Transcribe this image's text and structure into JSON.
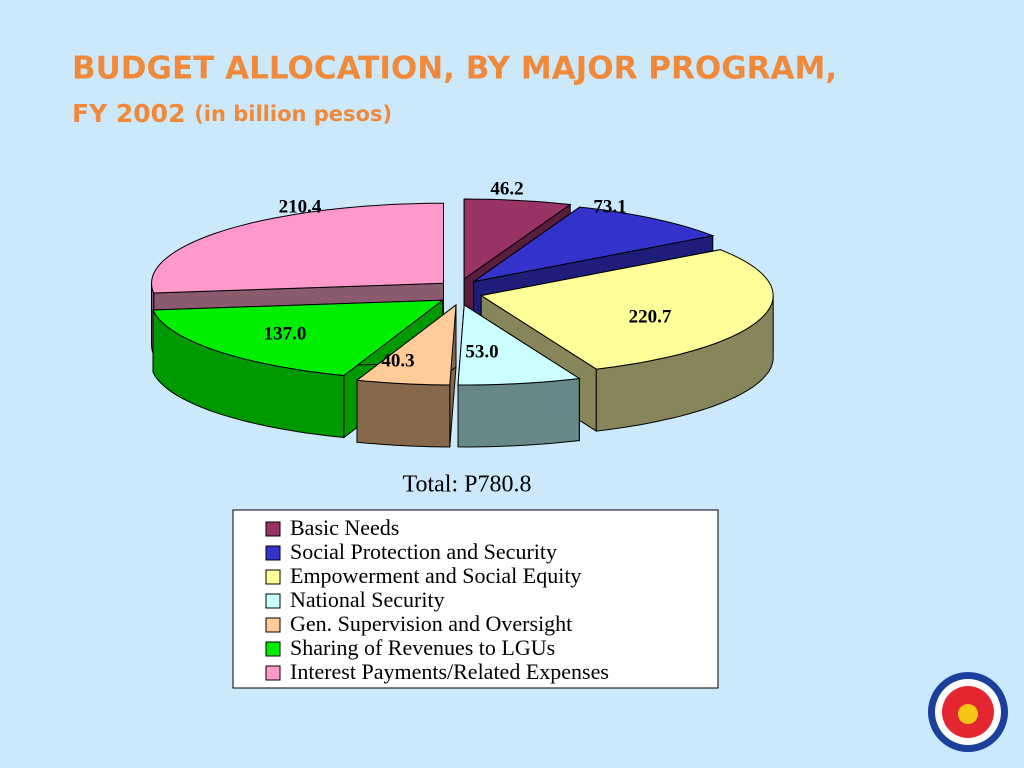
{
  "chart_data": {
    "type": "pie",
    "title": "BUDGET ALLOCATION, BY MAJOR PROGRAM,",
    "subtitle": "FY 2002",
    "unit_note": "(in billion pesos)",
    "total_label": "Total: P780.8",
    "categories": [
      "Basic Needs",
      "Social Protection and Security",
      "Empowerment and Social Equity",
      "National Security",
      "Gen. Supervision and Oversight",
      "Sharing of Revenues to LGUs",
      "Interest Payments/Related Expenses"
    ],
    "values": [
      46.2,
      73.1,
      220.7,
      53.0,
      40.3,
      137.0,
      210.4
    ],
    "value_labels": [
      "46.2",
      "73.1",
      "220.7",
      "53.0",
      "40.3",
      "137.0",
      "210.4"
    ],
    "colors": [
      "#993366",
      "#3333cc",
      "#ffff99",
      "#ccffff",
      "#ffcc99",
      "#00ee00",
      "#ff99cc"
    ],
    "side_colors": [
      "#5a1e3c",
      "#1e1e7a",
      "#86865a",
      "#668888",
      "#86694a",
      "#009900",
      "#8a5a6e"
    ],
    "legend": true
  }
}
